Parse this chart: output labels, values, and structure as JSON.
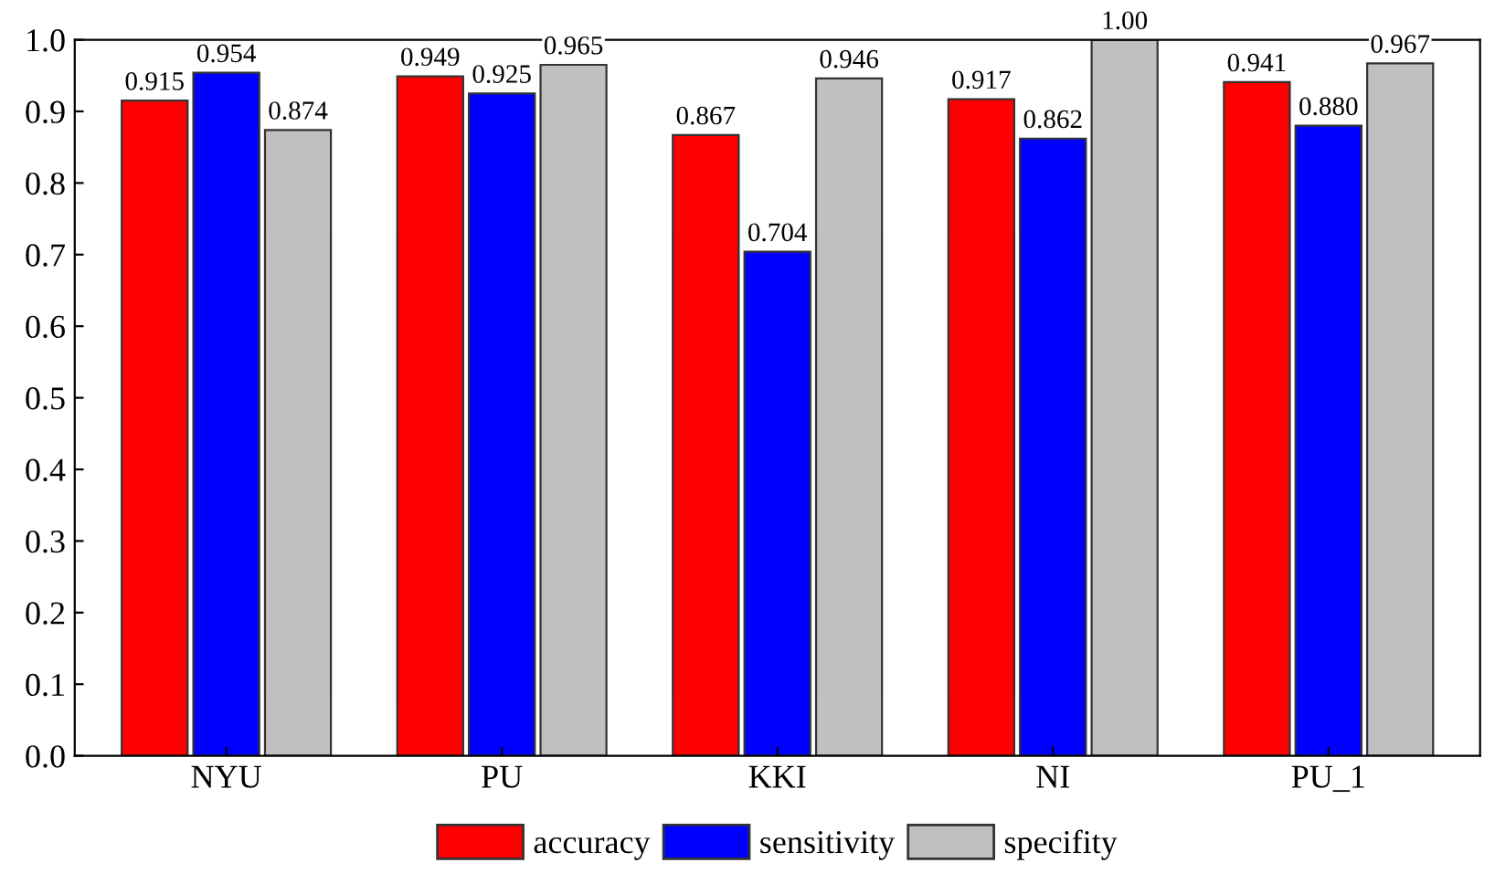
{
  "chart_data": {
    "type": "bar",
    "categories": [
      "NYU",
      "PU",
      "KKI",
      "NI",
      "PU_1"
    ],
    "series": [
      {
        "name": "accuracy",
        "color": "#ff0000",
        "values": [
          0.915,
          0.949,
          0.867,
          0.917,
          0.941
        ],
        "value_labels": [
          "0.915",
          "0.949",
          "0.867",
          "0.917",
          "0.941"
        ]
      },
      {
        "name": "sensitivity",
        "color": "#0000ff",
        "values": [
          0.954,
          0.925,
          0.704,
          0.862,
          0.88
        ],
        "value_labels": [
          "0.954",
          "0.925",
          "0.704",
          "0.862",
          "0.880"
        ]
      },
      {
        "name": "specifity",
        "color": "#c0c0c0",
        "values": [
          0.874,
          0.965,
          0.946,
          1.0,
          0.967
        ],
        "value_labels": [
          "0.874",
          "0.965",
          "0.946",
          "1.00",
          "0.967"
        ]
      }
    ],
    "ylim": [
      0,
      1.0
    ],
    "yticks": [
      {
        "value": 0,
        "label": "0.0"
      },
      {
        "value": 0.1,
        "label": "0.1"
      },
      {
        "value": 0.2,
        "label": "0.2"
      },
      {
        "value": 0.3,
        "label": "0.3"
      },
      {
        "value": 0.4,
        "label": "0.4"
      },
      {
        "value": 0.5,
        "label": "0.5"
      },
      {
        "value": 0.6,
        "label": "0.6"
      },
      {
        "value": 0.7,
        "label": "0.7"
      },
      {
        "value": 0.8,
        "label": "0.8"
      },
      {
        "value": 0.9,
        "label": "0.9"
      },
      {
        "value": 1.0,
        "label": "1.0"
      }
    ],
    "grid": false,
    "legend": "bottom"
  }
}
